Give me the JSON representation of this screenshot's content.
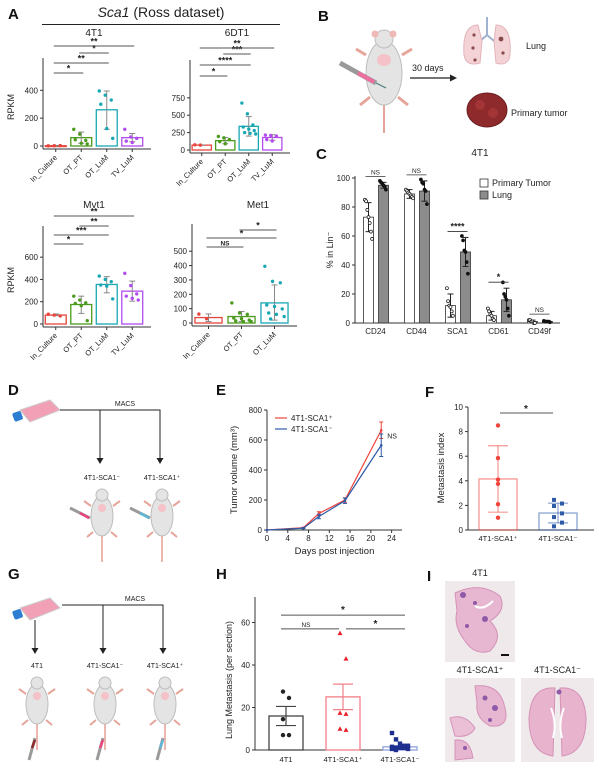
{
  "panels": {
    "A": "A",
    "B": "B",
    "C": "C",
    "D": "D",
    "E": "E",
    "F": "F",
    "G": "G",
    "H": "H",
    "I": "I"
  },
  "colors": {
    "in_culture": "#e8453c",
    "ot_pt": "#4a9a1c",
    "ot_lum": "#18a8b4",
    "tv_lum": "#b24cf0",
    "err_grey": "#888888",
    "sca1_pos": "#f0433a",
    "sca1_neg": "#2e5aa8",
    "h_4t1": "#222222",
    "h_pos": "#e8202c",
    "h_neg": "#1f2f8f",
    "c_lung": "#8c8c8c"
  },
  "chart_data": [
    {
      "id": "A-header",
      "type": "table",
      "title_italic": "Sca1",
      "title_rest": " (Ross dataset)"
    },
    {
      "id": "A-4T1",
      "type": "bar",
      "title": "4T1",
      "ylabel": "RPKM",
      "ylim": [
        0,
        560
      ],
      "yticks": [
        0,
        200,
        400
      ],
      "categories": [
        "In_Culture",
        "OT_PT",
        "OT_LuM",
        "TV_LuM"
      ],
      "values": [
        2,
        60,
        260,
        60
      ],
      "err": [
        [
          0,
          4
        ],
        [
          20,
          100
        ],
        [
          120,
          395
        ],
        [
          30,
          90
        ]
      ],
      "points": [
        [
          1,
          2,
          3
        ],
        [
          120,
          85,
          40,
          45,
          20,
          15
        ],
        [
          395,
          365,
          330,
          300,
          125,
          55
        ],
        [
          120,
          65,
          55,
          35,
          25
        ]
      ],
      "sig": [
        {
          "from": 0,
          "to": 1,
          "label": "*"
        },
        {
          "from": 0,
          "to": 2,
          "label": "**"
        },
        {
          "from": 1,
          "to": 2,
          "label": "*"
        },
        {
          "from": 0,
          "to": 3,
          "label": "**"
        }
      ]
    },
    {
      "id": "A-6DT1",
      "type": "bar",
      "title": "6DT1",
      "ylabel": "",
      "ylim": [
        0,
        1150
      ],
      "yticks": [
        0,
        250,
        500,
        750
      ],
      "categories": [
        "In_Culture",
        "OT_PT",
        "OT_LuM",
        "TV_LuM"
      ],
      "values": [
        70,
        135,
        340,
        180
      ],
      "err": [
        [
          70,
          70
        ],
        [
          90,
          180
        ],
        [
          200,
          480
        ],
        [
          140,
          220
        ]
      ],
      "points": [
        [
          75,
          70
        ],
        [
          195,
          175,
          150,
          120,
          90
        ],
        [
          675,
          520,
          360,
          330,
          300,
          280,
          250,
          240,
          230
        ],
        [
          215,
          210,
          200,
          150,
          130
        ]
      ],
      "sig": [
        {
          "from": 0,
          "to": 1,
          "label": "*"
        },
        {
          "from": 0,
          "to": 2,
          "label": "****"
        },
        {
          "from": 1,
          "to": 2,
          "label": "***"
        },
        {
          "from": 0,
          "to": 3,
          "label": "**"
        }
      ]
    },
    {
      "id": "A-Mvt1",
      "type": "bar",
      "title": "Mvt1",
      "ylabel": "RPKM",
      "ylim": [
        0,
        790
      ],
      "yticks": [
        0,
        200,
        400,
        600
      ],
      "categories": [
        "In_Culture",
        "OT_PT",
        "OT_LuM",
        "TV_LuM"
      ],
      "values": [
        80,
        175,
        355,
        295
      ],
      "err": [
        [
          75,
          90
        ],
        [
          95,
          250
        ],
        [
          280,
          425
        ],
        [
          205,
          385
        ]
      ],
      "points": [
        [
          88,
          80,
          72
        ],
        [
          250,
          215,
          190,
          185,
          165,
          30
        ],
        [
          430,
          400,
          380,
          350,
          340,
          225
        ],
        [
          455,
          345,
          270,
          250,
          230,
          215
        ]
      ],
      "sig": [
        {
          "from": 0,
          "to": 1,
          "label": "*"
        },
        {
          "from": 0,
          "to": 2,
          "label": "***"
        },
        {
          "from": 1,
          "to": 2,
          "label": "**"
        },
        {
          "from": 0,
          "to": 3,
          "label": "**"
        }
      ]
    },
    {
      "id": "A-Met1",
      "type": "bar",
      "title": "Met1",
      "ylabel": "",
      "ylim": [
        0,
        620
      ],
      "yticks": [
        0,
        100,
        200,
        300,
        400,
        500
      ],
      "categories": [
        "In_Culture",
        "OT_PT",
        "OT_LuM"
      ],
      "values": [
        38,
        45,
        140
      ],
      "err": [
        [
          10,
          63
        ],
        [
          10,
          80
        ],
        [
          20,
          265
        ]
      ],
      "points": [
        [
          62,
          30
        ],
        [
          140,
          70,
          60,
          35,
          30,
          20,
          15,
          10,
          10
        ],
        [
          395,
          290,
          280,
          125,
          115,
          98,
          70,
          60,
          45,
          28
        ]
      ],
      "sig": [
        {
          "from": 0,
          "to": 1,
          "label": "NS"
        },
        {
          "from": 0,
          "to": 2,
          "label": "*"
        },
        {
          "from": 1,
          "to": 2,
          "label": "*"
        }
      ]
    },
    {
      "id": "C",
      "type": "bar",
      "title": "4T1",
      "ylabel": "% in Lin⁻",
      "ylim": [
        0,
        100
      ],
      "yticks": [
        0,
        20,
        40,
        60,
        80,
        100
      ],
      "categories": [
        "CD24",
        "CD44",
        "SCA1",
        "CD61",
        "CD49f"
      ],
      "legend": [
        "Primary Tumor",
        "Lung"
      ],
      "legend_position": "top-right",
      "series": [
        {
          "name": "Primary Tumor",
          "values": [
            73,
            89,
            12,
            5,
            1
          ],
          "err": [
            10,
            3,
            8,
            3,
            1
          ],
          "points": [
            [
              85,
              84,
              78,
              73,
              69,
              63,
              58
            ],
            [
              92,
              91,
              90,
              89,
              88,
              87,
              86
            ],
            [
              24,
              15,
              12,
              11,
              8,
              5
            ],
            [
              10,
              8,
              6,
              5,
              3,
              2
            ],
            [
              2,
              2,
              1,
              1,
              0,
              0
            ]
          ]
        },
        {
          "name": "Lung",
          "values": [
            95,
            91,
            49,
            16,
            1
          ],
          "err": [
            2,
            7,
            10,
            8,
            0.5
          ],
          "points": [
            [
              98,
              97,
              96,
              95,
              94,
              92
            ],
            [
              99,
              97,
              96,
              92,
              91,
              82
            ],
            [
              60,
              57,
              50,
              49,
              42,
              34
            ],
            [
              28,
              20,
              18,
              16,
              10,
              5
            ],
            [
              1.5,
              1,
              1,
              1,
              1,
              0.5
            ]
          ]
        }
      ],
      "sig": [
        "NS",
        "NS",
        "****",
        "*",
        "NS"
      ]
    },
    {
      "id": "E",
      "type": "line",
      "xlabel": "Days post injection",
      "ylabel": "Tumor volume (mm³)",
      "xlim": [
        0,
        26
      ],
      "ylim": [
        0,
        800
      ],
      "xticks": [
        0,
        4,
        8,
        12,
        16,
        20,
        24
      ],
      "yticks": [
        0,
        200,
        400,
        600,
        800
      ],
      "x": [
        0,
        7,
        10,
        15,
        22
      ],
      "series": [
        {
          "name": "4T1-SCA1⁺",
          "values": [
            0,
            15,
            110,
            200,
            665
          ],
          "err": [
            0,
            3,
            12,
            15,
            55
          ]
        },
        {
          "name": "4T1-SCA1⁻",
          "values": [
            0,
            12,
            90,
            195,
            565
          ],
          "err": [
            0,
            3,
            15,
            18,
            75
          ]
        }
      ],
      "annotation": "NS",
      "legend_position": "top-left"
    },
    {
      "id": "F",
      "type": "bar",
      "ylabel": "Metastasis index",
      "ylim": [
        0,
        10
      ],
      "yticks": [
        0,
        2,
        4,
        6,
        8,
        10
      ],
      "categories": [
        "4T1-SCA1⁺",
        "4T1-SCA1⁻"
      ],
      "values": [
        4.15,
        1.38
      ],
      "err": [
        2.7,
        0.8
      ],
      "points": [
        [
          8.5,
          5.85,
          4.1,
          3.75,
          2.1,
          1.0
        ],
        [
          2.45,
          2.15,
          1.95,
          1.35,
          1.05,
          0.6,
          0.3
        ]
      ],
      "sig": "*"
    },
    {
      "id": "H",
      "type": "bar",
      "ylabel": "Lung Metastasis (per section)",
      "ylim": [
        0,
        72
      ],
      "yticks": [
        0,
        20,
        40,
        60
      ],
      "categories": [
        "4T1",
        "4T1-SCA1⁺",
        "4T1-SCA1⁻"
      ],
      "values": [
        16,
        25,
        1.5
      ],
      "err": [
        4.5,
        6,
        0.6
      ],
      "points": [
        [
          27.5,
          24.5,
          14.5,
          7,
          7
        ],
        [
          55,
          43,
          17.5,
          17,
          10,
          9.5
        ],
        [
          8,
          5,
          3,
          2,
          2,
          1.5,
          1,
          1,
          1,
          0.5,
          0.5,
          0
        ]
      ],
      "sig": [
        {
          "from": 0,
          "to": 1,
          "label": "NS"
        },
        {
          "from": 1,
          "to": 2,
          "label": "*"
        },
        {
          "from": 0,
          "to": 2,
          "label": "*"
        }
      ]
    }
  ],
  "panelB": {
    "arrow_label": "30 days",
    "lung_label": "Lung",
    "tumor_label": "Primary tumor"
  },
  "panelD": {
    "macs_label": "MACS",
    "labels": [
      "4T1-SCA1⁻",
      "4T1-SCA1⁺"
    ]
  },
  "panelG": {
    "macs_label": "MACS",
    "labels": [
      "4T1",
      "4T1-SCA1⁻",
      "4T1-SCA1⁺"
    ]
  },
  "panelI": {
    "labels": [
      "4T1",
      "4T1-SCA1⁺",
      "4T1-SCA1⁻"
    ]
  }
}
